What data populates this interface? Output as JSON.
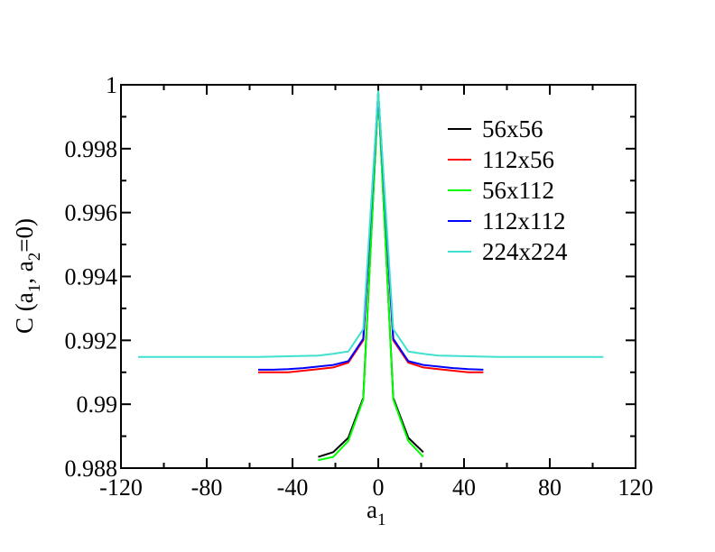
{
  "chart_data": {
    "type": "line",
    "title": "",
    "xlabel": {
      "main": "a",
      "sub": "1"
    },
    "ylabel": {
      "p1": "C (a",
      "s1": "1",
      "p2": ", a",
      "s2": "2",
      "p3": "=0)"
    },
    "xlim": [
      -120,
      120
    ],
    "ylim": [
      0.988,
      1.0
    ],
    "x_ticks": [
      -120,
      -80,
      -40,
      0,
      40,
      80,
      120
    ],
    "x_tick_labels": [
      "-120",
      "-80",
      "-40",
      "0",
      "40",
      "80",
      "120"
    ],
    "y_ticks": [
      0.988,
      0.99,
      0.992,
      0.994,
      0.996,
      0.998,
      1.0
    ],
    "y_tick_labels": [
      "0.988",
      "0.99",
      "0.992",
      "0.994",
      "0.996",
      "0.998",
      "1"
    ],
    "grid": false,
    "legend_position": "top-right",
    "series": [
      {
        "name": "56x56",
        "color": "#000000",
        "x": [
          -28,
          -21,
          -14,
          -7,
          0,
          7,
          14,
          21
        ],
        "y": [
          0.98835,
          0.9885,
          0.98895,
          0.9902,
          0.99975,
          0.9902,
          0.98895,
          0.9885
        ]
      },
      {
        "name": "112x56",
        "color": "#ff0000",
        "x": [
          -56,
          -49,
          -42,
          -35,
          -28,
          -21,
          -14,
          -7,
          0,
          7,
          14,
          21,
          28,
          35,
          42,
          49
        ],
        "y": [
          0.991,
          0.991,
          0.991,
          0.99105,
          0.9911,
          0.99115,
          0.9913,
          0.992,
          0.99975,
          0.992,
          0.9913,
          0.99115,
          0.9911,
          0.99105,
          0.991,
          0.991
        ]
      },
      {
        "name": "56x112",
        "color": "#00ff00",
        "x": [
          -28,
          -21,
          -14,
          -7,
          0,
          7,
          14,
          21
        ],
        "y": [
          0.98825,
          0.98835,
          0.98885,
          0.99015,
          0.9997,
          0.99015,
          0.98885,
          0.98835
        ]
      },
      {
        "name": "112x112",
        "color": "#0000ff",
        "x": [
          -56,
          -49,
          -42,
          -35,
          -28,
          -21,
          -14,
          -7,
          0,
          7,
          14,
          21,
          28,
          35,
          42,
          49
        ],
        "y": [
          0.99108,
          0.99108,
          0.9911,
          0.99113,
          0.99118,
          0.99123,
          0.99135,
          0.99205,
          0.99975,
          0.99205,
          0.99135,
          0.99123,
          0.99118,
          0.99113,
          0.9911,
          0.99108
        ]
      },
      {
        "name": "224x224",
        "color": "#40e0d0",
        "x": [
          -112,
          -98,
          -84,
          -70,
          -56,
          -42,
          -28,
          -21,
          -14,
          -7,
          0,
          7,
          14,
          21,
          28,
          42,
          56,
          70,
          84,
          98,
          105
        ],
        "y": [
          0.99148,
          0.99148,
          0.99148,
          0.99148,
          0.99148,
          0.9915,
          0.99152,
          0.99158,
          0.99165,
          0.99235,
          0.9998,
          0.99235,
          0.99165,
          0.99158,
          0.99152,
          0.9915,
          0.99148,
          0.99148,
          0.99148,
          0.99148,
          0.99148
        ]
      }
    ]
  }
}
